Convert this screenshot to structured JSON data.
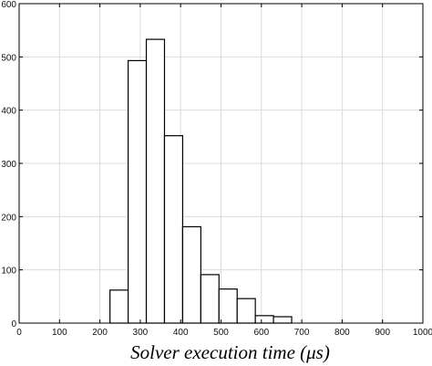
{
  "chart_data": {
    "type": "bar",
    "title": "",
    "xlabel": "Solver execution time (μs)",
    "ylabel": "",
    "xlim": [
      0,
      1000
    ],
    "ylim": [
      0,
      600
    ],
    "grid": true,
    "x_ticks": [
      "0",
      "100",
      "200",
      "300",
      "400",
      "500",
      "600",
      "700",
      "800",
      "900",
      "1000"
    ],
    "y_ticks": [
      "0",
      "100",
      "200",
      "300",
      "400",
      "500",
      "600"
    ],
    "bin_width": 45,
    "bins": [
      {
        "start": 225,
        "value": 62
      },
      {
        "start": 270,
        "value": 493
      },
      {
        "start": 315,
        "value": 533
      },
      {
        "start": 360,
        "value": 352
      },
      {
        "start": 405,
        "value": 181
      },
      {
        "start": 450,
        "value": 91
      },
      {
        "start": 495,
        "value": 64
      },
      {
        "start": 540,
        "value": 46
      },
      {
        "start": 585,
        "value": 14
      },
      {
        "start": 630,
        "value": 12
      }
    ],
    "colors": {
      "bar_fill": "#ffffff",
      "bar_stroke": "#000000",
      "grid": "#dcdcdc",
      "axes": "#000000"
    }
  }
}
